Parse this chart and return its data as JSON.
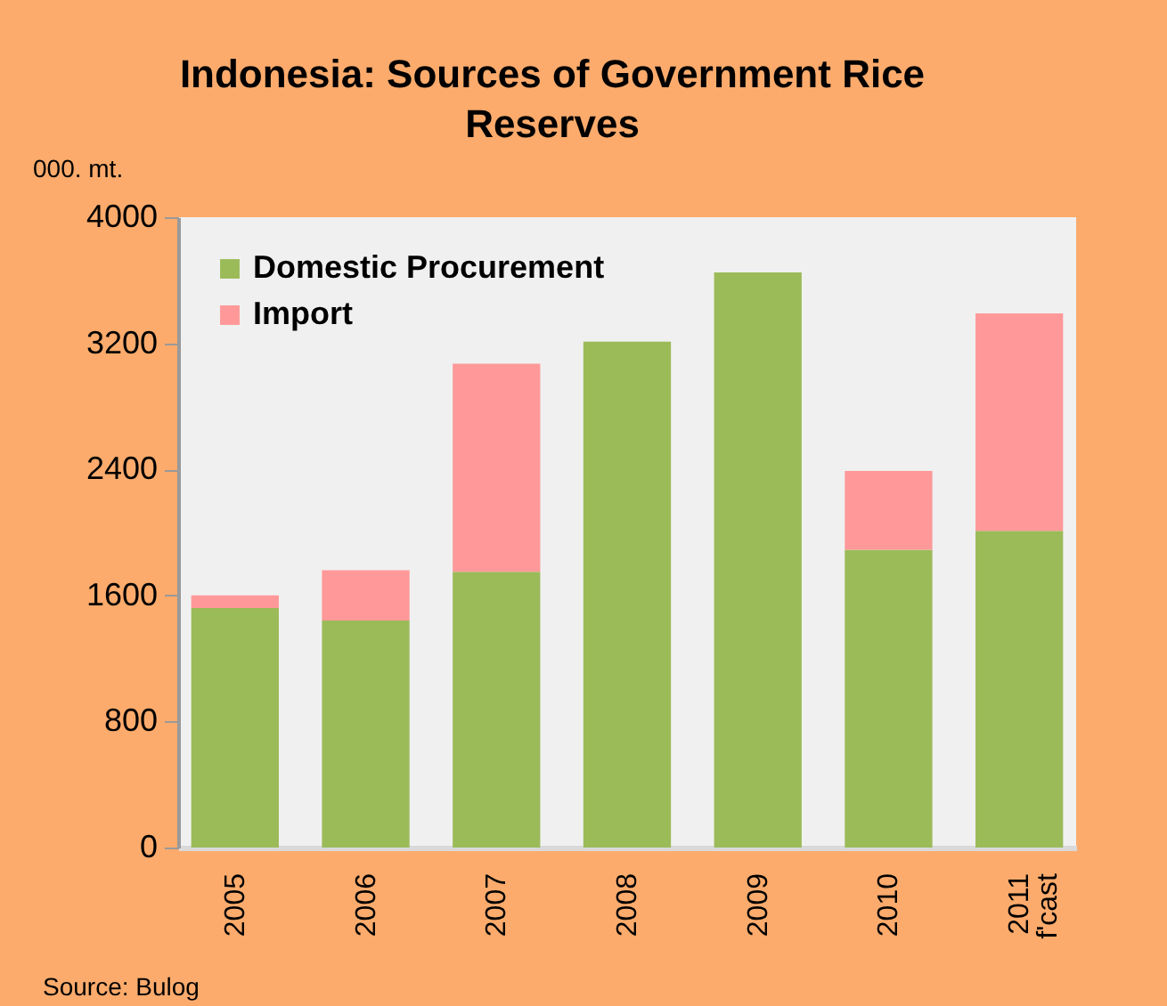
{
  "chart_data": {
    "type": "bar",
    "title": "Indonesia: Sources of Government Rice Reserves",
    "ylabel": "000. mt.",
    "categories": [
      "2005",
      "2006",
      "2007",
      "2008",
      "2009",
      "2010",
      "2011\nf'cast"
    ],
    "stacked": true,
    "series": [
      {
        "name": "Domestic Procurement",
        "color": "#9bbb59",
        "values": [
          1520,
          1440,
          1750,
          3210,
          3650,
          1890,
          2010
        ]
      },
      {
        "name": "Import",
        "color": "#ff9999",
        "values": [
          80,
          320,
          1320,
          null,
          null,
          500,
          1380
        ]
      }
    ],
    "ylim": [
      0,
      4000
    ],
    "yticks": [
      0,
      800,
      1600,
      2400,
      3200,
      4000
    ],
    "grid": false,
    "legend": "top left",
    "annotations": [
      "Source: Bulog"
    ]
  }
}
